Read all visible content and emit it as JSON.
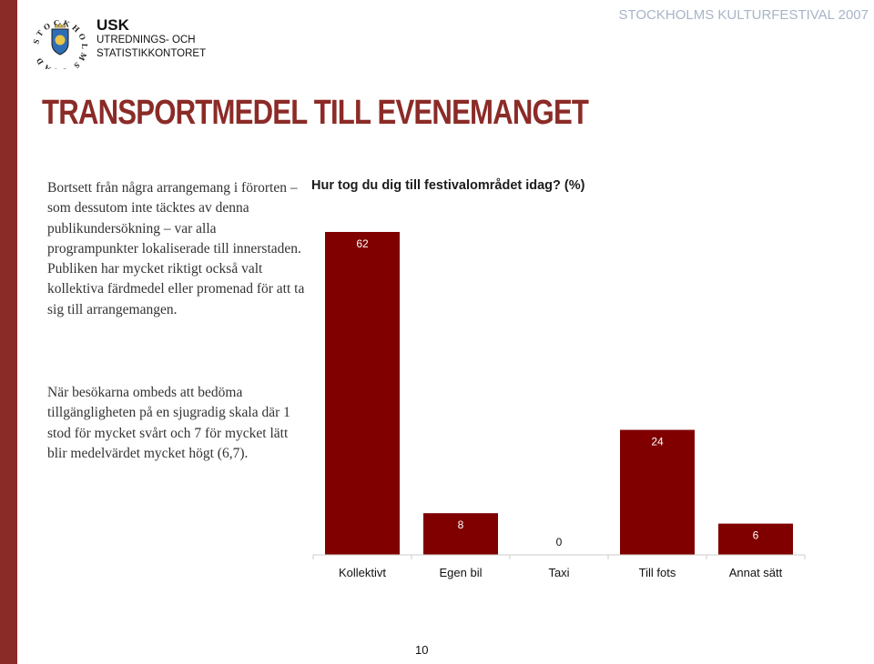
{
  "header": {
    "logo_ring_text": "STOCKHOLMS STAD",
    "org_short": "USK",
    "org_line1": "UTREDNINGS- OCH",
    "org_line2": "STATISTIKKONTORET",
    "festival": "STOCKHOLMS KULTURFESTIVAL 2007"
  },
  "page": {
    "title": "TRANSPORTMEDEL TILL EVENEMANGET",
    "number": "10"
  },
  "text": {
    "paragraph1": "Bortsett från några arrangemang i förorten – som dessutom inte täcktes av denna publikundersökning – var alla programpunkter lokaliserade till innerstaden. Publiken har mycket riktigt också valt kollektiva färdmedel eller promenad för att ta sig till arrangemangen.",
    "paragraph2": "När besökarna ombeds att bedöma tillgängligheten på en sjugradig skala där 1 stod för mycket svårt och 7 för mycket lätt blir medelvärdet mycket högt (6,7)."
  },
  "colors": {
    "accent": "#8B2B27",
    "bar": "#800000",
    "festival": "#A8B4C8"
  },
  "chart_data": {
    "type": "bar",
    "title": "Hur tog du dig till festivalområdet idag? (%)",
    "categories": [
      "Kollektivt",
      "Egen bil",
      "Taxi",
      "Till fots",
      "Annat sätt"
    ],
    "values": [
      62,
      8,
      0,
      24,
      6
    ],
    "data_labels": [
      "62",
      "8",
      "0",
      "24",
      "6"
    ],
    "ylim": [
      0,
      70
    ],
    "grid": false
  }
}
